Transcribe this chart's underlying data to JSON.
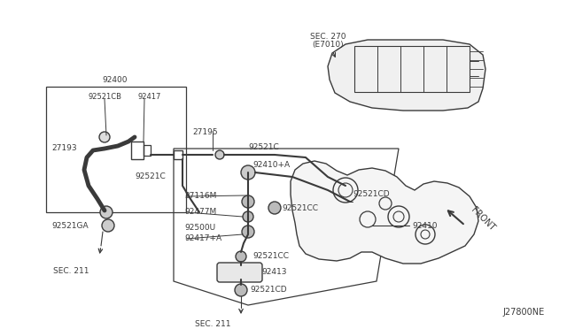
{
  "bg_color": "#ffffff",
  "line_color": "#3a3a3a",
  "text_color": "#3a3a3a",
  "diagram_id": "J27800NE",
  "figsize": [
    6.4,
    3.72
  ],
  "dpi": 100,
  "labels": {
    "sec270": "SEC. 270",
    "sec270b": "(E7010)",
    "l92400": "92400",
    "l92521CB": "92521CB",
    "l92417": "92417",
    "l27195": "27195",
    "l92521C_top": "92521C",
    "l27193": "27193",
    "l92521C_mid": "92521C",
    "l92521GA": "92521GA",
    "l92521CD_right": "92521CD",
    "l92410A": "92410+A",
    "l27116M": "27116M",
    "l92477M": "92477M",
    "l92500U": "92500U",
    "l92417A": "92417+A",
    "l92521CC_top": "92521CC",
    "l92521CC_bot": "92521CC",
    "l92413": "92413",
    "l92521CD_bot": "92521CD",
    "l92410": "92410",
    "l_front": "FRONT",
    "sec211_top": "SEC. 211",
    "sec211_bot": "SEC. 211"
  }
}
